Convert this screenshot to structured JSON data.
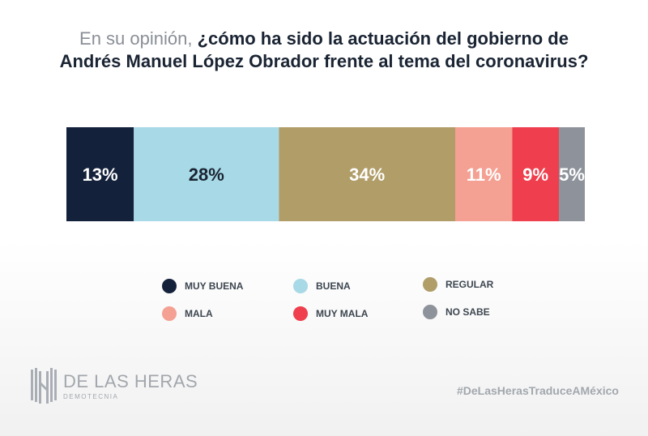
{
  "header": {
    "question_intro": "En su opinión,",
    "question_bold_line1": "¿cómo ha sido la actuación del gobierno de",
    "question_bold_line2": "Andrés Manuel López Obrador frente al tema del coronavirus?"
  },
  "chart_data": {
    "type": "bar",
    "orientation": "horizontal-stacked",
    "title": "En su opinión, ¿cómo ha sido la actuación del gobierno de Andrés Manuel López Obrador frente al tema del coronavirus?",
    "unit": "%",
    "series": [
      {
        "name": "MUY BUENA",
        "value": 13,
        "label": "13%",
        "color": "#14213a",
        "label_color": "#ffffff"
      },
      {
        "name": "BUENA",
        "value": 28,
        "label": "28%",
        "color": "#a8d9e6",
        "label_color": "#1a2433"
      },
      {
        "name": "REGULAR",
        "value": 34,
        "label": "34%",
        "color": "#b09d68",
        "label_color": "#ffffff"
      },
      {
        "name": "MALA",
        "value": 11,
        "label": "11%",
        "color": "#f4a093",
        "label_color": "#ffffff"
      },
      {
        "name": "MUY MALA",
        "value": 9,
        "label": "9%",
        "color": "#ef3e4d",
        "label_color": "#ffffff"
      },
      {
        "name": "NO SABE",
        "value": 5,
        "label": "5%",
        "color": "#8e939b",
        "label_color": "#ffffff"
      }
    ],
    "legend_placement": "bottom"
  },
  "legend": {
    "items": [
      {
        "label": "MUY BUENA",
        "color": "#14213a"
      },
      {
        "label": "BUENA",
        "color": "#a8d9e6"
      },
      {
        "label": "REGULAR",
        "color": "#b09d68"
      },
      {
        "label": "MALA",
        "color": "#f4a093"
      },
      {
        "label": "MUY MALA",
        "color": "#ef3e4d"
      },
      {
        "label": "NO SABE",
        "color": "#8e939b"
      }
    ]
  },
  "footer": {
    "logo_name": "DE LAS HERAS",
    "logo_sub": "DEMOTECNIA",
    "logo_icon": "de-las-heras-logo-icon",
    "hashtag": "#DeLasHerasTraduceAMéxico"
  }
}
